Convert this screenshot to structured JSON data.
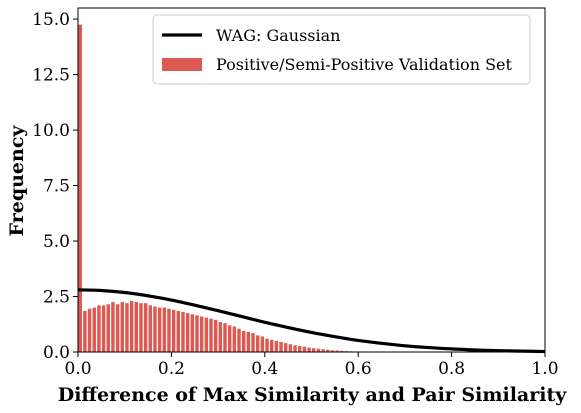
{
  "chart_data": {
    "type": "bar",
    "title": "",
    "xlabel": "Difference of Max Similarity and Pair Similarity",
    "ylabel": "Frequency",
    "xlim": [
      0,
      1.0
    ],
    "ylim": [
      0,
      15.5
    ],
    "xticks": [
      "0.0",
      "0.2",
      "0.4",
      "0.6",
      "0.8",
      "1.0"
    ],
    "yticks": [
      "0.0",
      "2.5",
      "5.0",
      "7.5",
      "10.0",
      "12.5",
      "15.0"
    ],
    "grid": false,
    "legend": {
      "placement": "top-right",
      "entries": [
        "WAG: Gaussian",
        "Positive/Semi-Positive Validation Set"
      ]
    },
    "colors": {
      "histogram": "#dd5a52",
      "gaussian": "#000000"
    },
    "series": [
      {
        "name": "Positive/Semi-Positive Validation Set",
        "type": "histogram",
        "bin_width": 0.01,
        "bin_starts": [
          0.0,
          0.01,
          0.02,
          0.03,
          0.04,
          0.05,
          0.06,
          0.07,
          0.08,
          0.09,
          0.1,
          0.11,
          0.12,
          0.13,
          0.14,
          0.15,
          0.16,
          0.17,
          0.18,
          0.19,
          0.2,
          0.21,
          0.22,
          0.23,
          0.24,
          0.25,
          0.26,
          0.27,
          0.28,
          0.29,
          0.3,
          0.31,
          0.32,
          0.33,
          0.34,
          0.35,
          0.36,
          0.37,
          0.38,
          0.39,
          0.4,
          0.41,
          0.42,
          0.43,
          0.44,
          0.45,
          0.46,
          0.47,
          0.48,
          0.49,
          0.5,
          0.51,
          0.52,
          0.53,
          0.54,
          0.55,
          0.56,
          0.57,
          0.58,
          0.59
        ],
        "values": [
          14.75,
          1.85,
          1.95,
          2.0,
          2.1,
          2.1,
          2.15,
          2.25,
          2.15,
          2.25,
          2.2,
          2.3,
          2.25,
          2.2,
          2.2,
          2.1,
          2.05,
          2.0,
          2.0,
          1.95,
          1.9,
          1.85,
          1.8,
          1.75,
          1.7,
          1.65,
          1.6,
          1.55,
          1.5,
          1.45,
          1.35,
          1.3,
          1.2,
          1.15,
          1.05,
          0.95,
          0.9,
          0.85,
          0.75,
          0.7,
          0.6,
          0.55,
          0.5,
          0.45,
          0.4,
          0.35,
          0.3,
          0.27,
          0.24,
          0.2,
          0.17,
          0.15,
          0.12,
          0.1,
          0.08,
          0.07,
          0.05,
          0.04,
          0.03,
          0.02
        ]
      },
      {
        "name": "WAG: Gaussian",
        "type": "line",
        "x": [
          0.0,
          0.05,
          0.1,
          0.15,
          0.2,
          0.25,
          0.3,
          0.35,
          0.4,
          0.45,
          0.5,
          0.55,
          0.6,
          0.65,
          0.7,
          0.75,
          0.8,
          0.85,
          0.9,
          0.95,
          1.0
        ],
        "y": [
          2.8,
          2.77,
          2.68,
          2.53,
          2.34,
          2.11,
          1.86,
          1.6,
          1.34,
          1.1,
          0.88,
          0.69,
          0.52,
          0.39,
          0.28,
          0.2,
          0.14,
          0.09,
          0.06,
          0.04,
          0.02
        ]
      }
    ]
  }
}
